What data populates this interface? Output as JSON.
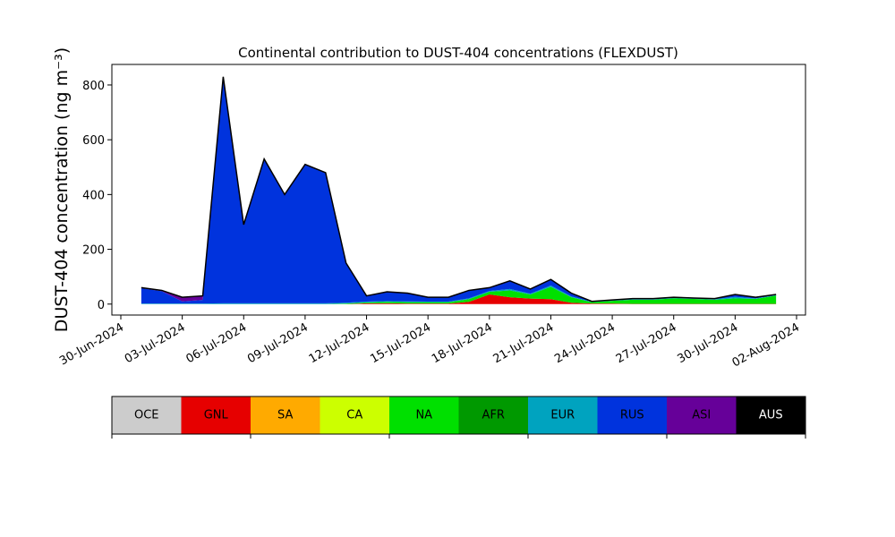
{
  "chart_data": {
    "type": "stacked-area",
    "title": "Continental contribution to DUST-404 concentrations (FLEXDUST)",
    "ylabel": "DUST-404 concentration (ng m⁻³)",
    "x": [
      "01-Jul-2024",
      "02-Jul-2024",
      "03-Jul-2024",
      "04-Jul-2024",
      "05-Jul-2024",
      "06-Jul-2024",
      "07-Jul-2024",
      "08-Jul-2024",
      "09-Jul-2024",
      "10-Jul-2024",
      "11-Jul-2024",
      "12-Jul-2024",
      "13-Jul-2024",
      "14-Jul-2024",
      "15-Jul-2024",
      "16-Jul-2024",
      "17-Jul-2024",
      "18-Jul-2024",
      "19-Jul-2024",
      "20-Jul-2024",
      "21-Jul-2024",
      "22-Jul-2024",
      "23-Jul-2024",
      "24-Jul-2024",
      "25-Jul-2024",
      "26-Jul-2024",
      "27-Jul-2024",
      "28-Jul-2024",
      "29-Jul-2024",
      "30-Jul-2024",
      "31-Jul-2024",
      "01-Aug-2024"
    ],
    "series": [
      {
        "name": "OCE",
        "color": "#cccccc",
        "values": [
          0,
          0,
          0,
          0,
          0,
          0,
          0,
          0,
          0,
          0,
          0,
          0,
          0,
          0,
          0,
          0,
          0,
          0,
          0,
          0,
          0,
          0,
          0,
          0,
          0,
          0,
          0,
          0,
          0,
          0,
          0,
          0
        ]
      },
      {
        "name": "GNL",
        "color": "#e60000",
        "values": [
          0,
          0,
          0,
          0,
          0,
          0,
          0,
          0,
          0,
          0,
          0,
          3,
          3,
          2,
          2,
          2,
          8,
          35,
          25,
          20,
          18,
          5,
          2,
          2,
          1,
          1,
          1,
          1,
          1,
          1,
          1,
          1
        ]
      },
      {
        "name": "SA",
        "color": "#ffaa00",
        "values": [
          0,
          0,
          0,
          0,
          0,
          0,
          0,
          0,
          0,
          0,
          0,
          0,
          0,
          0,
          0,
          0,
          0,
          0,
          0,
          0,
          0,
          0,
          0,
          0,
          0,
          0,
          0,
          0,
          0,
          0,
          0,
          0
        ]
      },
      {
        "name": "CA",
        "color": "#ccff00",
        "values": [
          0,
          0,
          0,
          0,
          0,
          0,
          0,
          0,
          0,
          0,
          0,
          0,
          0,
          0,
          0,
          0,
          0,
          0,
          0,
          0,
          0,
          0,
          0,
          0,
          0,
          0,
          0,
          0,
          0,
          0,
          0,
          0
        ]
      },
      {
        "name": "NA",
        "color": "#00e000",
        "values": [
          0,
          0,
          0,
          0,
          0,
          0,
          0,
          0,
          0,
          0,
          2,
          3,
          5,
          5,
          5,
          5,
          10,
          10,
          25,
          15,
          45,
          20,
          5,
          10,
          15,
          15,
          20,
          18,
          15,
          20,
          18,
          30
        ]
      },
      {
        "name": "AFR",
        "color": "#009900",
        "values": [
          0,
          0,
          0,
          0,
          0,
          0,
          0,
          0,
          0,
          0,
          0,
          0,
          0,
          0,
          0,
          0,
          0,
          0,
          0,
          0,
          0,
          0,
          0,
          0,
          0,
          0,
          0,
          0,
          0,
          0,
          0,
          0
        ]
      },
      {
        "name": "EUR",
        "color": "#00a3bf",
        "values": [
          2,
          2,
          2,
          2,
          3,
          3,
          3,
          3,
          3,
          3,
          3,
          3,
          3,
          3,
          2,
          2,
          3,
          3,
          5,
          3,
          5,
          3,
          1,
          1,
          2,
          2,
          2,
          1,
          2,
          5,
          2,
          2
        ]
      },
      {
        "name": "RUS",
        "color": "#0033dd",
        "values": [
          56,
          45,
          8,
          13,
          817,
          285,
          525,
          395,
          505,
          475,
          143,
          20,
          33,
          29,
          15,
          15,
          28,
          11,
          28,
          16,
          20,
          11,
          2,
          2,
          2,
          2,
          2,
          2,
          2,
          9,
          4,
          2
        ]
      },
      {
        "name": "ASI",
        "color": "#660099",
        "values": [
          2,
          3,
          15,
          15,
          10,
          2,
          2,
          2,
          2,
          2,
          2,
          1,
          1,
          1,
          1,
          1,
          1,
          1,
          2,
          1,
          2,
          1,
          0,
          0,
          0,
          0,
          0,
          0,
          0,
          0,
          0,
          0
        ]
      },
      {
        "name": "AUS",
        "color": "#000000",
        "values": [
          0,
          0,
          0,
          0,
          0,
          0,
          0,
          0,
          0,
          0,
          0,
          0,
          0,
          0,
          0,
          0,
          0,
          0,
          0,
          0,
          0,
          0,
          0,
          0,
          0,
          0,
          0,
          0,
          0,
          0,
          0,
          0
        ]
      }
    ],
    "xlim": [
      "30-Jun-2024",
      "02-Aug-2024"
    ],
    "xticks": [
      "30-Jun-2024",
      "03-Jul-2024",
      "06-Jul-2024",
      "09-Jul-2024",
      "12-Jul-2024",
      "15-Jul-2024",
      "18-Jul-2024",
      "21-Jul-2024",
      "24-Jul-2024",
      "27-Jul-2024",
      "30-Jul-2024",
      "02-Aug-2024"
    ],
    "ylim": [
      -40,
      875
    ],
    "yticks": [
      0,
      200,
      400,
      600,
      800
    ]
  }
}
